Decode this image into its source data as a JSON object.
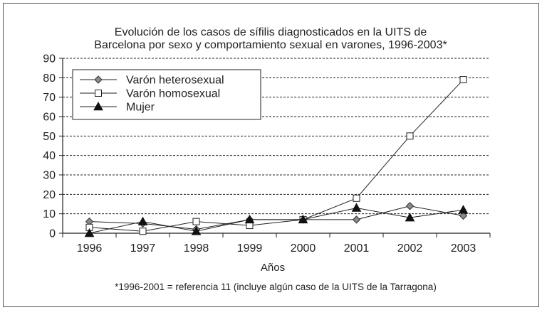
{
  "chart_data": {
    "type": "line",
    "title_lines": [
      "Evolución de los casos de sífilis diagnosticados en la UITS de",
      "Barcelona por sexo y comportamiento sexual en varones, 1996-2003*"
    ],
    "xlabel": "Años",
    "ylabel": "",
    "categories": [
      "1996",
      "1997",
      "1998",
      "1999",
      "2000",
      "2001",
      "2002",
      "2003"
    ],
    "ylim": [
      0,
      90
    ],
    "yticks": [
      0,
      10,
      20,
      30,
      40,
      50,
      60,
      70,
      80,
      90
    ],
    "grid": "horizontal dashed",
    "legend_position": "top-left",
    "series": [
      {
        "name": "Varón heterosexual",
        "marker": "diamond",
        "color": "#8a8a8a",
        "values": [
          6,
          5,
          2,
          7,
          7,
          7,
          14,
          9
        ]
      },
      {
        "name": "Varón homosexual",
        "marker": "square",
        "color": "#ffffff",
        "values": [
          3,
          1,
          6,
          4,
          7,
          18,
          50,
          79
        ]
      },
      {
        "name": "Mujer",
        "marker": "triangle",
        "color": "#111111",
        "values": [
          0,
          6,
          1,
          7,
          7,
          13,
          8,
          12
        ]
      }
    ],
    "footnote": "*1996-2001 = referencia 11 (incluye algún caso de la UITS de la Tarragona)"
  }
}
